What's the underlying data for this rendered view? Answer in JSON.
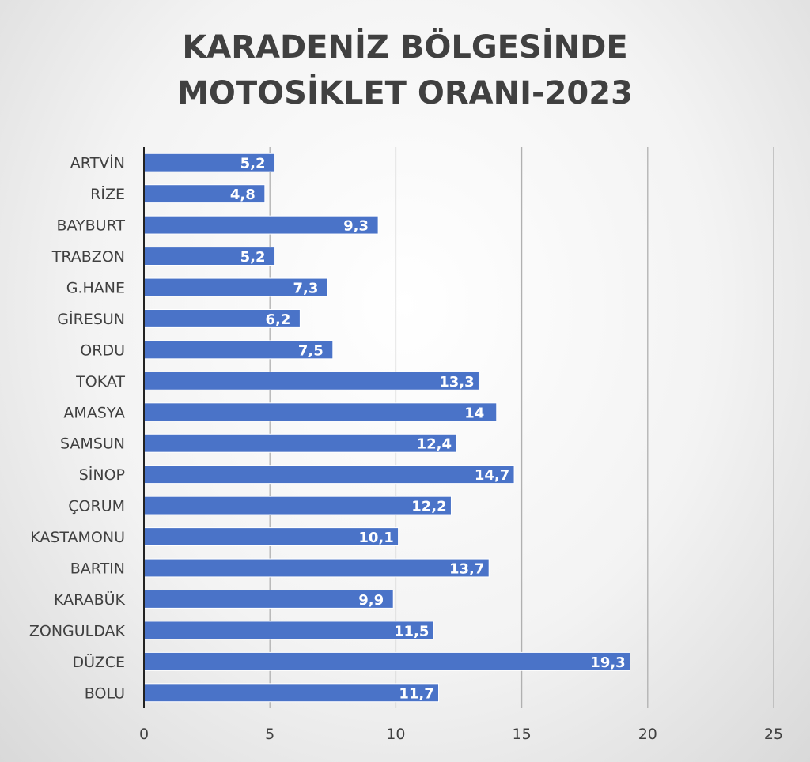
{
  "chart_data": {
    "type": "bar",
    "orientation": "horizontal",
    "title_lines": [
      "KARADENİZ BÖLGESİNDE",
      "MOTOSİKLET ORANI-2023"
    ],
    "categories": [
      "ARTVİN",
      "RİZE",
      "BAYBURT",
      "TRABZON",
      "G.HANE",
      "GİRESUN",
      "ORDU",
      "TOKAT",
      "AMASYA",
      "SAMSUN",
      "SİNOP",
      "ÇORUM",
      "KASTAMONU",
      "BARTIN",
      "KARABÜK",
      "ZONGULDAK",
      "DÜZCE",
      "BOLU"
    ],
    "values": [
      5.2,
      4.8,
      9.3,
      5.2,
      7.3,
      6.2,
      7.5,
      13.3,
      14,
      12.4,
      14.7,
      12.2,
      10.1,
      13.7,
      9.9,
      11.5,
      19.3,
      11.7
    ],
    "value_labels": [
      "5,2",
      "4,8",
      "9,3",
      "5,2",
      "7,3",
      "6,2",
      "7,5",
      "13,3",
      "14",
      "12,4",
      "14,7",
      "12,2",
      "10,1",
      "13,7",
      "9,9",
      "11,5",
      "19,3",
      "11,7"
    ],
    "xlim": [
      0,
      25
    ],
    "x_ticks": [
      0,
      5,
      10,
      15,
      20,
      25
    ],
    "grid": true,
    "legend": false,
    "bar_color": "#4a73c8"
  }
}
